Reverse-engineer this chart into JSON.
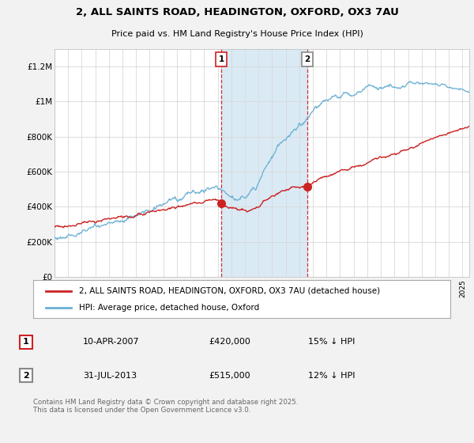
{
  "title_line1": "2, ALL SAINTS ROAD, HEADINGTON, OXFORD, OX3 7AU",
  "title_line2": "Price paid vs. HM Land Registry's House Price Index (HPI)",
  "ylabel_ticks": [
    "£0",
    "£200K",
    "£400K",
    "£600K",
    "£800K",
    "£1M",
    "£1.2M"
  ],
  "ytick_values": [
    0,
    200000,
    400000,
    600000,
    800000,
    1000000,
    1200000
  ],
  "ylim": [
    0,
    1300000
  ],
  "xlim_start": 1995.0,
  "xlim_end": 2025.5,
  "hpi_color": "#6ab0d4",
  "price_color": "#cc2222",
  "shade_color": "#daeaf5",
  "transaction1_x": 2007.27,
  "transaction1_y": 420000,
  "transaction2_x": 2013.58,
  "transaction2_y": 515000,
  "legend_label1": "2, ALL SAINTS ROAD, HEADINGTON, OXFORD, OX3 7AU (detached house)",
  "legend_label2": "HPI: Average price, detached house, Oxford",
  "annotation1_label": "1",
  "annotation2_label": "2",
  "annotation1_border": "#cc2222",
  "annotation2_border": "#888888",
  "table_row1": [
    "1",
    "10-APR-2007",
    "£420,000",
    "15% ↓ HPI"
  ],
  "table_row2": [
    "2",
    "31-JUL-2013",
    "£515,000",
    "12% ↓ HPI"
  ],
  "footer": "Contains HM Land Registry data © Crown copyright and database right 2025.\nThis data is licensed under the Open Government Licence v3.0.",
  "background_color": "#f2f2f2",
  "plot_bg_color": "#ffffff"
}
